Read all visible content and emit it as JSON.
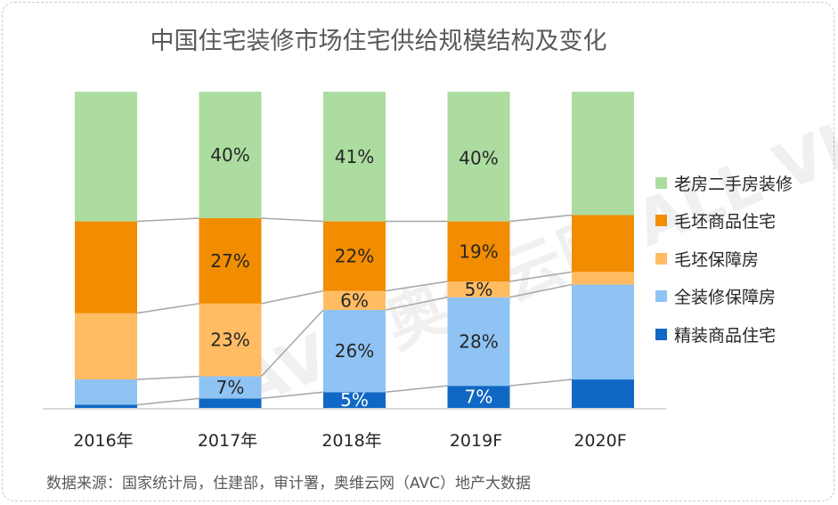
{
  "title": "中国住宅装修市场住宅供给规模结构及变化",
  "source": "数据来源：国家统计局，住建部，审计署，奥维云网（AVC）地产大数据",
  "watermark": "AVC 奥维云网 ALL VIEW CLOUD",
  "chart_data": {
    "type": "bar",
    "stacked": true,
    "normalized": true,
    "ylim": [
      0,
      100
    ],
    "categories": [
      "2016年",
      "2017年",
      "2018年",
      "2019F",
      "2020F"
    ],
    "legend_position": "right",
    "grid": false,
    "series_lines": true,
    "series": [
      {
        "name": "精装商品住宅",
        "color": "#1068c4",
        "label_color": "#ffffff",
        "values": [
          1,
          3,
          5,
          7,
          9
        ],
        "labels": [
          "",
          "",
          "5%",
          "7%",
          ""
        ]
      },
      {
        "name": "全装修保障房",
        "color": "#8fc3f4",
        "label_color": "#262626",
        "values": [
          8,
          7,
          26,
          28,
          30
        ],
        "labels": [
          "",
          "7%",
          "26%",
          "28%",
          ""
        ]
      },
      {
        "name": "毛坯保障房",
        "color": "#ffbc63",
        "label_color": "#262626",
        "values": [
          21,
          23,
          6,
          5,
          4
        ],
        "labels": [
          "",
          "23%",
          "6%",
          "5%",
          ""
        ]
      },
      {
        "name": "毛坯商品住宅",
        "color": "#f28c00",
        "label_color": "#262626",
        "values": [
          29,
          27,
          22,
          19,
          18
        ],
        "labels": [
          "",
          "27%",
          "22%",
          "19%",
          ""
        ]
      },
      {
        "name": "老房二手房装修",
        "color": "#acdca0",
        "label_color": "#262626",
        "values": [
          41,
          40,
          41,
          40,
          39
        ],
        "labels": [
          "",
          "40%",
          "41%",
          "40%",
          ""
        ]
      }
    ],
    "legend_order": [
      "老房二手房装修",
      "毛坯商品住宅",
      "毛坯保障房",
      "全装修保障房",
      "精装商品住宅"
    ]
  }
}
